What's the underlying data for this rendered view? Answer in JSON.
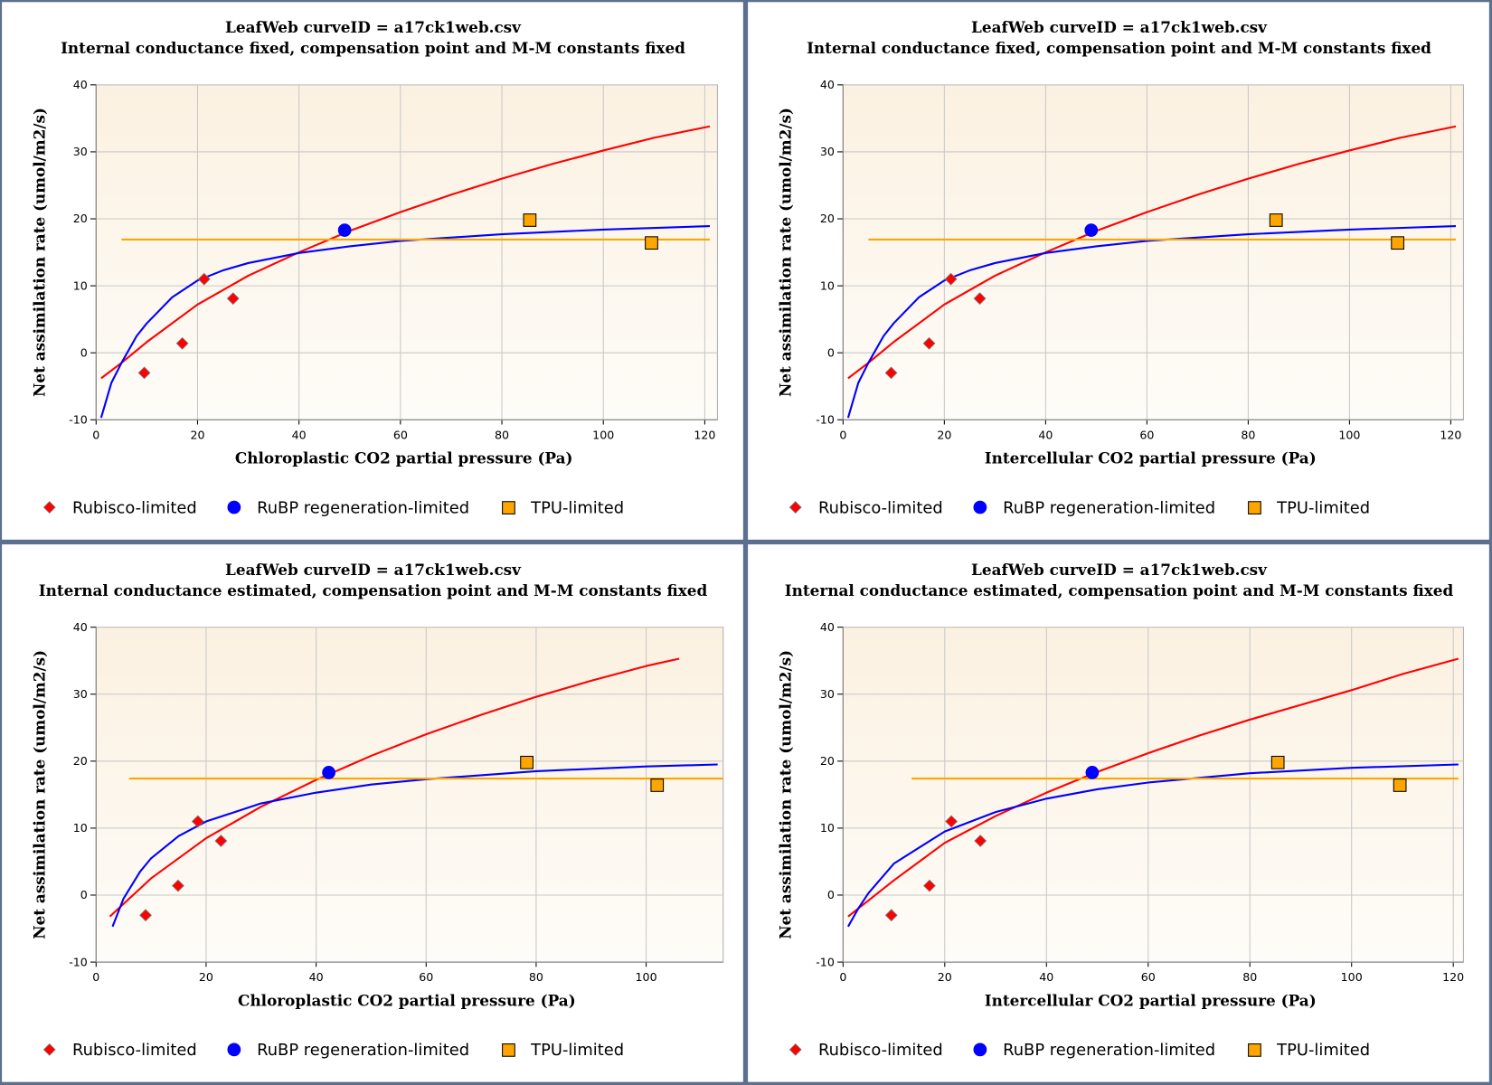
{
  "colors": {
    "rubisco": "#ff0000",
    "rubp": "#0000ff",
    "tpu": "#ffa500",
    "border": "#5b7090",
    "plot_bg_top": "#fbf1e1",
    "plot_bg_bottom": "#fefcf8",
    "grid": "#c8c8c8"
  },
  "legend": {
    "rubisco": "Rubisco-limited",
    "rubp": "RuBP regeneration-limited",
    "tpu": "TPU-limited"
  },
  "chart_data": [
    {
      "type": "line",
      "title": "LeafWeb curveID = a17ck1web.csv",
      "subtitle": "Internal conductance fixed, compensation point and M-M constants fixed",
      "xlabel": "Chloroplastic CO2 partial pressure (Pa)",
      "ylabel": "Net assimilation rate (umol/m2/s)",
      "xlim": [
        0,
        122.5
      ],
      "ylim": [
        -10,
        40
      ],
      "xticks": [
        0,
        20,
        40,
        60,
        80,
        100,
        120
      ],
      "yticks": [
        -10,
        0,
        10,
        20,
        30,
        40
      ],
      "grid": true,
      "legend_position": "bottom",
      "series": [
        {
          "name": "Rubisco-limited",
          "kind": "curve",
          "key": "rubisco",
          "x": [
            1,
            5,
            10,
            20,
            30,
            40,
            50,
            60,
            70,
            80,
            90,
            100,
            110,
            121
          ],
          "y": [
            -3.8,
            -1.5,
            1.6,
            7.2,
            11.5,
            15,
            18.2,
            21,
            23.6,
            26,
            28.2,
            30.2,
            32.1,
            33.8
          ]
        },
        {
          "name": "RuBP regeneration-limited",
          "kind": "curve",
          "key": "rubp",
          "x": [
            1,
            3,
            5,
            8,
            10,
            15,
            20,
            25,
            30,
            40,
            50,
            60,
            80,
            100,
            121
          ],
          "y": [
            -9.7,
            -4.5,
            -1.5,
            2.5,
            4.4,
            8.3,
            10.8,
            12.3,
            13.4,
            14.9,
            15.9,
            16.7,
            17.7,
            18.4,
            18.9
          ]
        },
        {
          "name": "TPU-limited",
          "kind": "curve",
          "key": "tpu",
          "x": [
            5,
            121
          ],
          "y": [
            16.9,
            16.9
          ]
        },
        {
          "name": "Rubisco-limited",
          "kind": "points",
          "key": "rubisco",
          "marker": "diamond",
          "x": [
            9.5,
            17,
            21.3,
            27
          ],
          "y": [
            -3,
            1.4,
            11,
            8.1
          ]
        },
        {
          "name": "RuBP regeneration-limited",
          "kind": "points",
          "key": "rubp",
          "marker": "circle",
          "x": [
            49
          ],
          "y": [
            18.3
          ]
        },
        {
          "name": "TPU-limited",
          "kind": "points",
          "key": "tpu",
          "marker": "square",
          "x": [
            85.5,
            109.5
          ],
          "y": [
            19.8,
            16.4
          ]
        }
      ]
    },
    {
      "type": "line",
      "title": "LeafWeb curveID = a17ck1web.csv",
      "subtitle": "Internal conductance fixed, compensation point and M-M constants fixed",
      "xlabel": "Intercellular CO2 partial pressure (Pa)",
      "ylabel": "Net assimilation rate (umol/m2/s)",
      "xlim": [
        0,
        122.5
      ],
      "ylim": [
        -10,
        40
      ],
      "xticks": [
        0,
        20,
        40,
        60,
        80,
        100,
        120
      ],
      "yticks": [
        -10,
        0,
        10,
        20,
        30,
        40
      ],
      "grid": true,
      "legend_position": "bottom",
      "series": [
        {
          "name": "Rubisco-limited",
          "kind": "curve",
          "key": "rubisco",
          "x": [
            1,
            5,
            10,
            20,
            30,
            40,
            50,
            60,
            70,
            80,
            90,
            100,
            110,
            121
          ],
          "y": [
            -3.8,
            -1.5,
            1.6,
            7.2,
            11.5,
            15,
            18.2,
            21,
            23.6,
            26,
            28.2,
            30.2,
            32.1,
            33.8
          ]
        },
        {
          "name": "RuBP regeneration-limited",
          "kind": "curve",
          "key": "rubp",
          "x": [
            1,
            3,
            5,
            8,
            10,
            15,
            20,
            25,
            30,
            40,
            50,
            60,
            80,
            100,
            121
          ],
          "y": [
            -9.7,
            -4.5,
            -1.5,
            2.5,
            4.4,
            8.3,
            10.8,
            12.3,
            13.4,
            14.9,
            15.9,
            16.7,
            17.7,
            18.4,
            18.9
          ]
        },
        {
          "name": "TPU-limited",
          "kind": "curve",
          "key": "tpu",
          "x": [
            5,
            121
          ],
          "y": [
            16.9,
            16.9
          ]
        },
        {
          "name": "Rubisco-limited",
          "kind": "points",
          "key": "rubisco",
          "marker": "diamond",
          "x": [
            9.5,
            17,
            21.3,
            27
          ],
          "y": [
            -3,
            1.4,
            11,
            8.1
          ]
        },
        {
          "name": "RuBP regeneration-limited",
          "kind": "points",
          "key": "rubp",
          "marker": "circle",
          "x": [
            49
          ],
          "y": [
            18.3
          ]
        },
        {
          "name": "TPU-limited",
          "kind": "points",
          "key": "tpu",
          "marker": "square",
          "x": [
            85.5,
            109.5
          ],
          "y": [
            19.8,
            16.4
          ]
        }
      ]
    },
    {
      "type": "line",
      "title": "LeafWeb curveID = a17ck1web.csv",
      "subtitle": "Internal conductance estimated, compensation point and M-M constants fixed",
      "xlabel": "Chloroplastic CO2 partial pressure (Pa)",
      "ylabel": "Net assimilation rate (umol/m2/s)",
      "xlim": [
        0,
        114
      ],
      "ylim": [
        -10,
        40
      ],
      "xticks": [
        0,
        20,
        40,
        60,
        80,
        100
      ],
      "yticks": [
        -10,
        0,
        10,
        20,
        30,
        40
      ],
      "grid": true,
      "legend_position": "bottom",
      "series": [
        {
          "name": "Rubisco-limited",
          "kind": "curve",
          "key": "rubisco",
          "x": [
            2.5,
            10,
            20,
            30,
            40,
            50,
            60,
            70,
            80,
            90,
            100,
            106
          ],
          "y": [
            -3.2,
            2.5,
            8.5,
            13.2,
            17.2,
            20.8,
            24,
            26.9,
            29.6,
            32,
            34.2,
            35.3
          ]
        },
        {
          "name": "RuBP regeneration-limited",
          "kind": "curve",
          "key": "rubp",
          "x": [
            3,
            5,
            8,
            10,
            15,
            20,
            30,
            40,
            50,
            60,
            80,
            100,
            113
          ],
          "y": [
            -4.7,
            -0.5,
            3.5,
            5.5,
            8.8,
            11,
            13.7,
            15.3,
            16.5,
            17.3,
            18.5,
            19.2,
            19.5
          ]
        },
        {
          "name": "TPU-limited",
          "kind": "curve",
          "key": "tpu",
          "x": [
            6,
            114
          ],
          "y": [
            17.4,
            17.4
          ]
        },
        {
          "name": "Rubisco-limited",
          "kind": "points",
          "key": "rubisco",
          "marker": "diamond",
          "x": [
            9,
            14.9,
            18.5,
            22.7
          ],
          "y": [
            -3,
            1.4,
            11,
            8.1
          ]
        },
        {
          "name": "RuBP regeneration-limited",
          "kind": "points",
          "key": "rubp",
          "marker": "circle",
          "x": [
            42.3
          ],
          "y": [
            18.3
          ]
        },
        {
          "name": "TPU-limited",
          "kind": "points",
          "key": "tpu",
          "marker": "square",
          "x": [
            78.3,
            102
          ],
          "y": [
            19.8,
            16.4
          ]
        }
      ]
    },
    {
      "type": "line",
      "title": "LeafWeb curveID = a17ck1web.csv",
      "subtitle": "Internal conductance estimated, compensation point and M-M constants fixed",
      "xlabel": "Intercellular CO2 partial pressure (Pa)",
      "ylabel": "Net assimilation rate (umol/m2/s)",
      "xlim": [
        0,
        122
      ],
      "ylim": [
        -10,
        40
      ],
      "xticks": [
        0,
        20,
        40,
        60,
        80,
        100,
        120
      ],
      "yticks": [
        -10,
        0,
        10,
        20,
        30,
        40
      ],
      "grid": true,
      "legend_position": "bottom",
      "series": [
        {
          "name": "Rubisco-limited",
          "kind": "curve",
          "key": "rubisco",
          "x": [
            1,
            10,
            20,
            30,
            40,
            50,
            60,
            70,
            80,
            90,
            100,
            110,
            121
          ],
          "y": [
            -3.2,
            2.2,
            7.8,
            11.8,
            15.3,
            18.4,
            21.2,
            23.8,
            26.2,
            28.4,
            30.6,
            33,
            35.3
          ]
        },
        {
          "name": "RuBP regeneration-limited",
          "kind": "curve",
          "key": "rubp",
          "x": [
            1,
            3,
            5,
            10,
            20,
            30,
            40,
            50,
            60,
            80,
            100,
            121
          ],
          "y": [
            -4.7,
            -2,
            0.3,
            4.7,
            9.5,
            12.4,
            14.4,
            15.8,
            16.8,
            18.2,
            19,
            19.5
          ]
        },
        {
          "name": "TPU-limited",
          "kind": "curve",
          "key": "tpu",
          "x": [
            13.5,
            121
          ],
          "y": [
            17.4,
            17.4
          ]
        },
        {
          "name": "Rubisco-limited",
          "kind": "points",
          "key": "rubisco",
          "marker": "diamond",
          "x": [
            9.5,
            17,
            21.3,
            27
          ],
          "y": [
            -3,
            1.4,
            11,
            8.1
          ]
        },
        {
          "name": "RuBP regeneration-limited",
          "kind": "points",
          "key": "rubp",
          "marker": "circle",
          "x": [
            49
          ],
          "y": [
            18.3
          ]
        },
        {
          "name": "TPU-limited",
          "kind": "points",
          "key": "tpu",
          "marker": "square",
          "x": [
            85.5,
            109.5
          ],
          "y": [
            19.8,
            16.4
          ]
        }
      ]
    }
  ]
}
